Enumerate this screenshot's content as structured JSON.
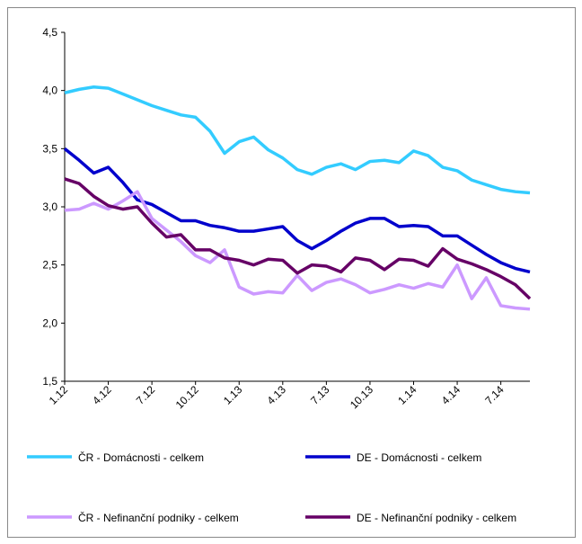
{
  "chart_data": {
    "type": "line",
    "categories": [
      "1.12",
      null,
      null,
      "4.12",
      null,
      null,
      "7.12",
      null,
      null,
      "10.12",
      null,
      null,
      "1.13",
      null,
      null,
      "4.13",
      null,
      null,
      "7.13",
      null,
      null,
      "10.13",
      null,
      null,
      "1.14",
      null,
      null,
      "4.14",
      null,
      null,
      "7.14",
      null,
      null
    ],
    "series": [
      {
        "name": "ČR - Domácnosti - celkem",
        "color": "#33ccff",
        "values": [
          3.98,
          4.01,
          4.03,
          4.02,
          3.97,
          3.92,
          3.87,
          3.83,
          3.79,
          3.77,
          3.65,
          3.46,
          3.56,
          3.6,
          3.49,
          3.42,
          3.32,
          3.28,
          3.34,
          3.37,
          3.32,
          3.39,
          3.4,
          3.38,
          3.48,
          3.44,
          3.34,
          3.31,
          3.23,
          3.19,
          3.15,
          3.13,
          3.12
        ]
      },
      {
        "name": "DE - Domácnosti - celkem",
        "color": "#0000cc",
        "values": [
          3.5,
          3.4,
          3.29,
          3.34,
          3.21,
          3.06,
          3.02,
          2.95,
          2.88,
          2.88,
          2.84,
          2.82,
          2.79,
          2.79,
          2.81,
          2.83,
          2.71,
          2.64,
          2.71,
          2.79,
          2.86,
          2.9,
          2.9,
          2.83,
          2.84,
          2.83,
          2.75,
          2.75,
          2.67,
          2.59,
          2.52,
          2.47,
          2.44
        ]
      },
      {
        "name": "ČR - Nefinanční podniky - celkem",
        "color": "#cc99ff",
        "values": [
          2.97,
          2.98,
          3.03,
          2.98,
          3.05,
          3.13,
          2.9,
          2.8,
          2.7,
          2.58,
          2.52,
          2.63,
          2.31,
          2.25,
          2.27,
          2.26,
          2.41,
          2.28,
          2.35,
          2.38,
          2.33,
          2.26,
          2.29,
          2.33,
          2.3,
          2.34,
          2.31,
          2.5,
          2.21,
          2.39,
          2.15,
          2.13,
          2.12
        ]
      },
      {
        "name": "DE - Nefinanční podniky - celkem",
        "color": "#660066",
        "values": [
          3.24,
          3.2,
          3.09,
          3.01,
          2.98,
          3.0,
          2.86,
          2.74,
          2.76,
          2.63,
          2.63,
          2.56,
          2.54,
          2.5,
          2.55,
          2.54,
          2.43,
          2.5,
          2.49,
          2.44,
          2.56,
          2.54,
          2.46,
          2.55,
          2.54,
          2.49,
          2.64,
          2.55,
          2.51,
          2.46,
          2.4,
          2.33,
          2.21
        ]
      }
    ],
    "ylim": [
      1.5,
      4.5
    ],
    "yticks": [
      {
        "value": 1.5,
        "label": "1,5"
      },
      {
        "value": 2.0,
        "label": "2,0"
      },
      {
        "value": 2.5,
        "label": "2,5"
      },
      {
        "value": 3.0,
        "label": "3,0"
      },
      {
        "value": 3.5,
        "label": "3,5"
      },
      {
        "value": 4.0,
        "label": "4,0"
      },
      {
        "value": 4.5,
        "label": "4,5"
      }
    ],
    "grid": false
  }
}
